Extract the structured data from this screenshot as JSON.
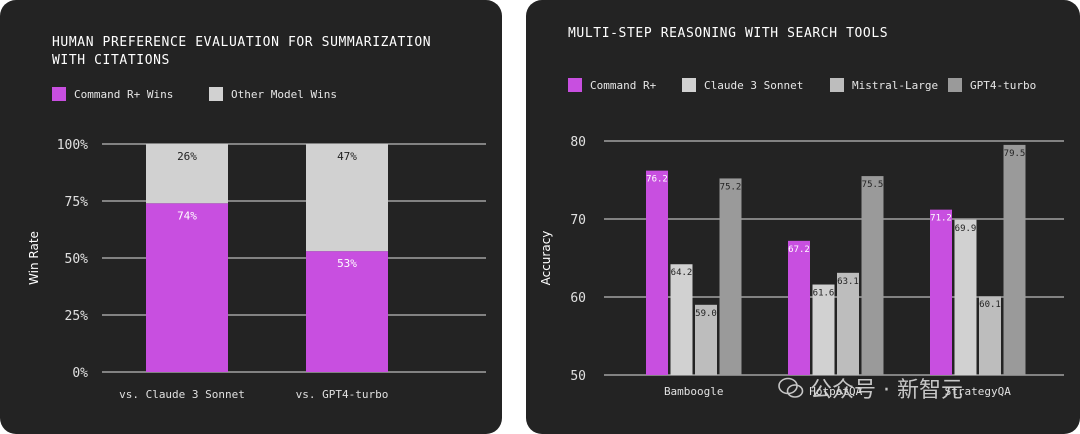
{
  "left_panel": {
    "title": "HUMAN PREFERENCE EVALUATION FOR SUMMARIZATION\nWITH CITATIONS",
    "legend": [
      {
        "label": "Command R+ Wins",
        "color": "#c84fe0"
      },
      {
        "label": "Other Model Wins",
        "color": "#d1d1d1"
      }
    ]
  },
  "right_panel": {
    "title": "MULTI-STEP REASONING WITH SEARCH TOOLS",
    "legend": [
      {
        "label": "Command R+",
        "color": "#c84fe0"
      },
      {
        "label": "Claude 3 Sonnet",
        "color": "#d1d1d1"
      },
      {
        "label": "Mistral-Large",
        "color": "#bdbdbd"
      },
      {
        "label": "GPT4-turbo",
        "color": "#9a9a9a"
      }
    ]
  },
  "watermark": {
    "text": "公众号 · 新智元"
  },
  "chart_data": [
    {
      "type": "bar",
      "stacked": true,
      "title": "HUMAN PREFERENCE EVALUATION FOR SUMMARIZATION WITH CITATIONS",
      "categories": [
        "vs. Claude 3 Sonnet",
        "vs. GPT4-turbo"
      ],
      "series": [
        {
          "name": "Command R+ Wins",
          "values": [
            74,
            53
          ],
          "labels": [
            "74%",
            "53%"
          ],
          "color": "#c84fe0"
        },
        {
          "name": "Other Model Wins",
          "values": [
            26,
            47
          ],
          "labels": [
            "26%",
            "47%"
          ],
          "color": "#d1d1d1"
        }
      ],
      "ylabel": "Win Rate",
      "ylim": [
        0,
        100
      ],
      "yticks": [
        "0%",
        "25%",
        "50%",
        "75%",
        "100%"
      ],
      "legend_position": "top-left"
    },
    {
      "type": "bar",
      "title": "MULTI-STEP REASONING WITH SEARCH TOOLS",
      "categories": [
        "Bamboogle",
        "HotpotQA",
        "StrategyQA"
      ],
      "series": [
        {
          "name": "Command R+",
          "values": [
            76.2,
            67.2,
            71.2
          ],
          "labels": [
            "76.2",
            "67.2",
            "71.2"
          ],
          "color": "#c84fe0"
        },
        {
          "name": "Claude 3 Sonnet",
          "values": [
            64.2,
            61.6,
            69.9
          ],
          "labels": [
            "64.2",
            "61.6",
            "69.9"
          ],
          "color": "#d1d1d1"
        },
        {
          "name": "Mistral-Large",
          "values": [
            59.0,
            63.1,
            60.1
          ],
          "labels": [
            "59.0",
            "63.1",
            "60.1"
          ],
          "color": "#bdbdbd"
        },
        {
          "name": "GPT4-turbo",
          "values": [
            75.2,
            75.5,
            79.5
          ],
          "labels": [
            "75.2",
            "75.5",
            "79.5"
          ],
          "color": "#9a9a9a"
        }
      ],
      "ylabel": "Accuracy",
      "ylim": [
        50,
        80
      ],
      "yticks": [
        "50",
        "60",
        "70",
        "80"
      ],
      "legend_position": "top-left"
    }
  ]
}
